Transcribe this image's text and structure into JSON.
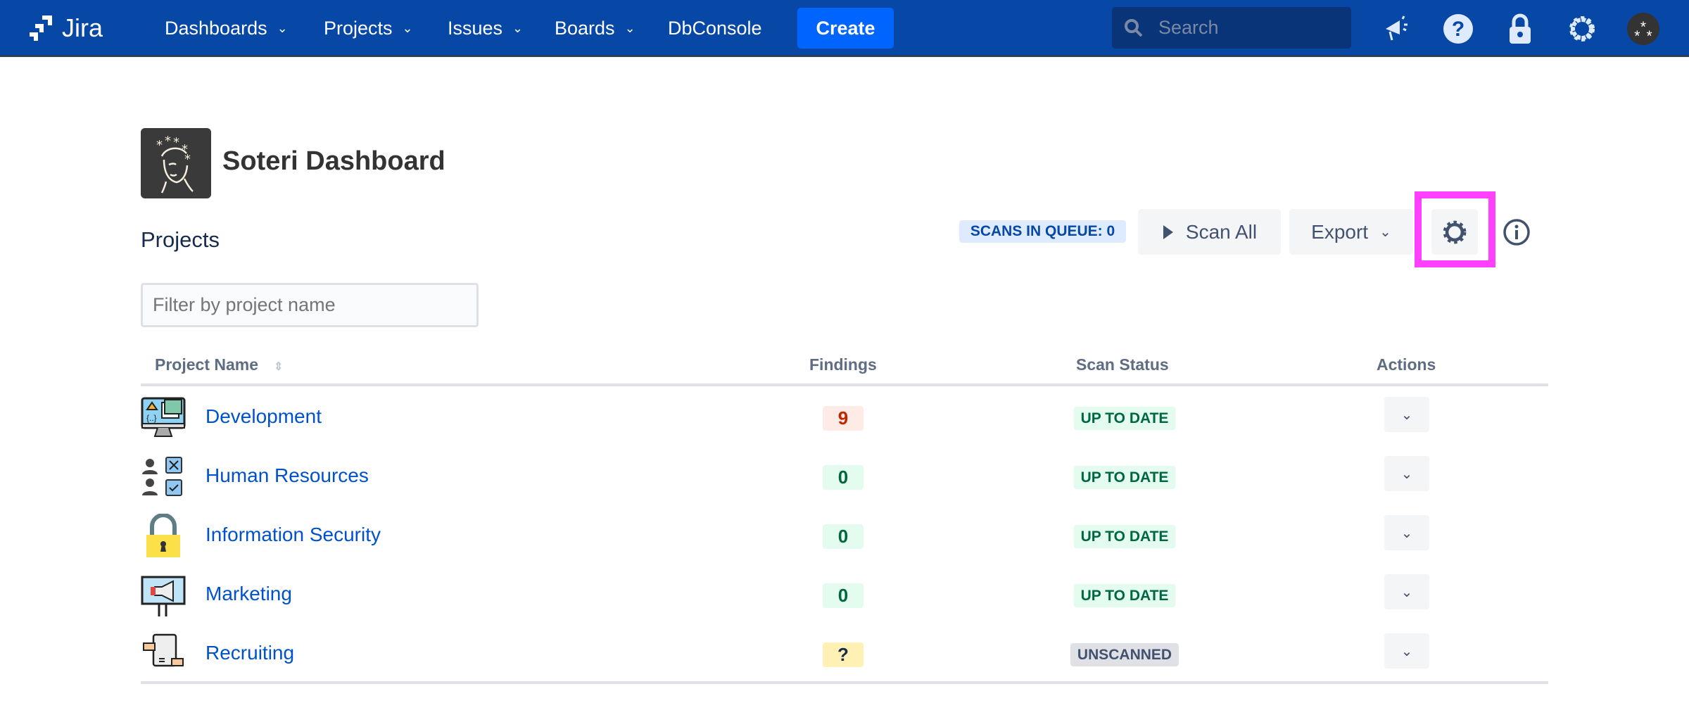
{
  "topbar": {
    "app_name": "Jira",
    "nav": [
      {
        "label": "Dashboards",
        "dropdown": true
      },
      {
        "label": "Projects",
        "dropdown": true
      },
      {
        "label": "Issues",
        "dropdown": true
      },
      {
        "label": "Boards",
        "dropdown": true
      },
      {
        "label": "DbConsole",
        "dropdown": false
      }
    ],
    "create_label": "Create",
    "search_placeholder": "Search",
    "icons": [
      "megaphone-icon",
      "help-icon",
      "lock-icon",
      "gear-icon",
      "avatar"
    ]
  },
  "page": {
    "title": "Soteri Dashboard",
    "section_title": "Projects",
    "filter_placeholder": "Filter by project name"
  },
  "toolbar": {
    "queue_label": "SCANS IN QUEUE: 0",
    "scan_all_label": "Scan All",
    "export_label": "Export"
  },
  "table": {
    "headers": {
      "name": "Project Name",
      "findings": "Findings",
      "status": "Scan Status",
      "actions": "Actions"
    },
    "rows": [
      {
        "name": "Development",
        "findings": "9",
        "status": "UP TO DATE",
        "icon": "computer-code-icon",
        "findings_kind": "danger",
        "status_kind": "success"
      },
      {
        "name": "Human Resources",
        "findings": "0",
        "status": "UP TO DATE",
        "icon": "people-checklist-icon",
        "findings_kind": "success",
        "status_kind": "success"
      },
      {
        "name": "Information Security",
        "findings": "0",
        "status": "UP TO DATE",
        "icon": "padlock-icon",
        "findings_kind": "success",
        "status_kind": "success"
      },
      {
        "name": "Marketing",
        "findings": "0",
        "status": "UP TO DATE",
        "icon": "billboard-megaphone-icon",
        "findings_kind": "success",
        "status_kind": "success"
      },
      {
        "name": "Recruiting",
        "findings": "?",
        "status": "UNSCANNED",
        "icon": "handshake-document-icon",
        "findings_kind": "warning",
        "status_kind": "neutral"
      }
    ]
  },
  "colors": {
    "header": "#0747a6",
    "link": "#0052cc",
    "highlight": "#ff40ff",
    "danger_bg": "#ffebe6",
    "danger_fg": "#bf2600",
    "success_bg": "#e3fcef",
    "success_fg": "#006644",
    "warning_bg": "#fff0b3",
    "neutral_bg": "#dfe1e6"
  }
}
